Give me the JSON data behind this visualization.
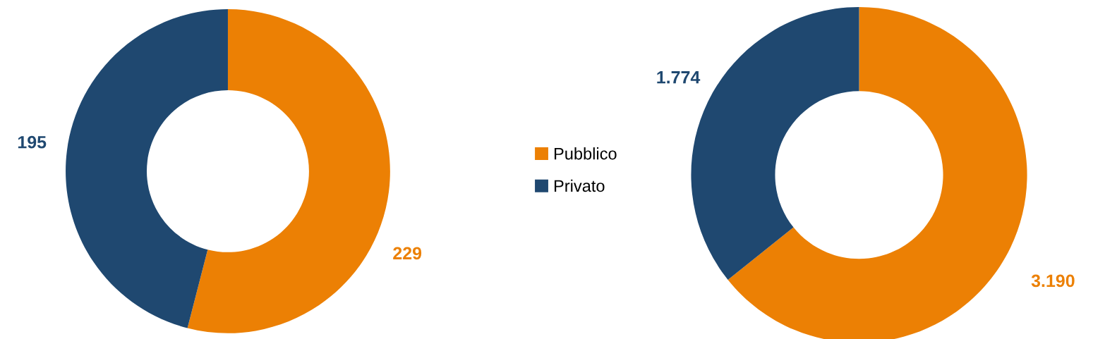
{
  "chart_data": [
    {
      "type": "donut",
      "categories": [
        "Pubblico",
        "Privato"
      ],
      "values": [
        229,
        195
      ],
      "colors": [
        "#ec8004",
        "#1f4870"
      ],
      "value_labels": [
        "229",
        "195"
      ],
      "legend": "right"
    },
    {
      "type": "donut",
      "categories": [
        null,
        null
      ],
      "values": [
        3190,
        1774
      ],
      "colors": [
        "#ec8004",
        "#1f4870"
      ],
      "value_labels": [
        "3.190",
        "1.774"
      ]
    }
  ]
}
